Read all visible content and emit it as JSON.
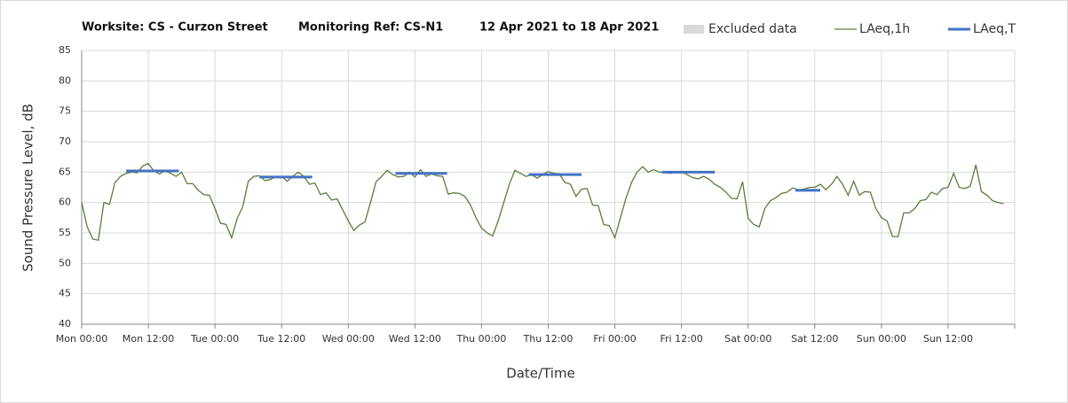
{
  "chart_data": {
    "type": "line",
    "title_parts": [
      "Worksite: CS - Curzon Street",
      "Monitoring Ref: CS-N1",
      "12 Apr 2021 to 18 Apr 2021"
    ],
    "x_label": "Date/Time",
    "y_label": "Sound Pressure Level, dB",
    "xlim": [
      0,
      168
    ],
    "ylim": [
      40,
      85
    ],
    "yticks": [
      40,
      45,
      50,
      55,
      60,
      65,
      70,
      75,
      80,
      85
    ],
    "xticks": [
      {
        "value": 0,
        "label": "Mon 00:00"
      },
      {
        "value": 12,
        "label": "Mon 12:00"
      },
      {
        "value": 24,
        "label": "Tue 00:00"
      },
      {
        "value": 36,
        "label": "Tue 12:00"
      },
      {
        "value": 48,
        "label": "Wed 00:00"
      },
      {
        "value": 60,
        "label": "Wed 12:00"
      },
      {
        "value": 72,
        "label": "Thu 00:00"
      },
      {
        "value": 84,
        "label": "Thu 12:00"
      },
      {
        "value": 96,
        "label": "Fri 00:00"
      },
      {
        "value": 108,
        "label": "Fri 12:00"
      },
      {
        "value": 120,
        "label": "Sat 00:00"
      },
      {
        "value": 132,
        "label": "Sat 12:00"
      },
      {
        "value": 144,
        "label": "Sun 00:00"
      },
      {
        "value": 156,
        "label": "Sun 12:00"
      },
      {
        "value": 168,
        "label": ""
      }
    ],
    "grid": true,
    "series": [
      {
        "name": "Excluded data",
        "color": "#d9d9d9",
        "kind": "area",
        "x": [],
        "values": []
      },
      {
        "name": "LAeq,1h",
        "color": "#5a7d3a",
        "kind": "line",
        "x": [
          0,
          1,
          2,
          3,
          4,
          5,
          6,
          7,
          8,
          9,
          10,
          11,
          12,
          13,
          14,
          15,
          16,
          17,
          18,
          19,
          20,
          21,
          22,
          23,
          24,
          25,
          26,
          27,
          28,
          29,
          30,
          31,
          32,
          33,
          34,
          35,
          36,
          37,
          38,
          39,
          40,
          41,
          42,
          43,
          44,
          45,
          46,
          47,
          48,
          49,
          50,
          51,
          52,
          53,
          54,
          55,
          56,
          57,
          58,
          59,
          60,
          61,
          62,
          63,
          64,
          65,
          66,
          67,
          68,
          69,
          70,
          71,
          72,
          73,
          74,
          75,
          76,
          77,
          78,
          79,
          80,
          81,
          82,
          83,
          84,
          85,
          86,
          87,
          88,
          89,
          90,
          91,
          92,
          93,
          94,
          95,
          96,
          97,
          98,
          99,
          100,
          101,
          102,
          103,
          104,
          105,
          106,
          107,
          108,
          109,
          110,
          111,
          112,
          113,
          114,
          115,
          116,
          117,
          118,
          119,
          120,
          121,
          122,
          123,
          124,
          125,
          126,
          127,
          128,
          129,
          130,
          131,
          132,
          133,
          134,
          135,
          136,
          137,
          138,
          139,
          140,
          141,
          142,
          143,
          144,
          145,
          146,
          147,
          148,
          149,
          150,
          151,
          152,
          153,
          154,
          155,
          156,
          157,
          158,
          159,
          160,
          161,
          162,
          163,
          164,
          165,
          166
        ],
        "values": [
          60,
          56,
          54,
          53.8,
          60,
          59.7,
          63.3,
          64.3,
          64.8,
          65,
          64.9,
          66,
          66.4,
          65.2,
          64.7,
          65.2,
          64.8,
          64.3,
          65,
          63.1,
          63.1,
          62,
          61.3,
          61.2,
          59,
          56.6,
          56.4,
          54.2,
          57.4,
          59.3,
          63.5,
          64.3,
          64.4,
          63.6,
          63.8,
          64.3,
          64.3,
          63.5,
          64.3,
          65,
          64.3,
          63,
          63.2,
          61.3,
          61.6,
          60.4,
          60.6,
          58.8,
          57,
          55.4,
          56.3,
          56.8,
          60,
          63.4,
          64.3,
          65.3,
          64.6,
          64.2,
          64.3,
          65,
          64.2,
          65.4,
          64.3,
          64.7,
          64.4,
          64.3,
          61.4,
          61.6,
          61.5,
          61,
          59.6,
          57.5,
          55.8,
          55,
          54.5,
          57,
          60,
          63,
          65.3,
          64.8,
          64.3,
          64.6,
          64,
          64.6,
          65.1,
          64.8,
          64.7,
          63.3,
          63,
          61,
          62.2,
          62.3,
          59.6,
          59.5,
          56.4,
          56.2,
          54.2,
          57.5,
          60.7,
          63.3,
          65,
          65.9,
          65,
          65.4,
          65,
          65,
          64.8,
          65,
          65,
          64.6,
          64.1,
          63.9,
          64.3,
          63.8,
          63,
          62.5,
          61.7,
          60.7,
          60.6,
          63.4,
          57.4,
          56.4,
          56,
          59,
          60.3,
          60.8,
          61.5,
          61.7,
          62.4,
          62.1,
          62.2,
          62.5,
          62.5,
          63,
          62.1,
          63,
          64.3,
          63,
          61.2,
          63.5,
          61.2,
          61.8,
          61.7,
          59,
          57.5,
          57,
          54.4,
          54.4,
          58.3,
          58.3,
          59,
          60.3,
          60.5,
          61.7,
          61.3,
          62.3,
          62.5,
          64.8,
          62.5,
          62.3,
          62.7,
          66.2,
          61.8,
          61.2,
          60.3,
          60,
          59.8
        ]
      },
      {
        "name": "LAeq,T",
        "color": "#4472c4",
        "kind": "segments",
        "x": [
          8,
          17.5,
          32,
          41.5,
          56.5,
          65.8,
          80.5,
          90,
          104.5,
          114,
          128.5,
          133
        ],
        "values": [
          65.2,
          65.2,
          64.2,
          64.2,
          64.8,
          64.8,
          64.6,
          64.6,
          65,
          65,
          62,
          62
        ]
      }
    ]
  }
}
